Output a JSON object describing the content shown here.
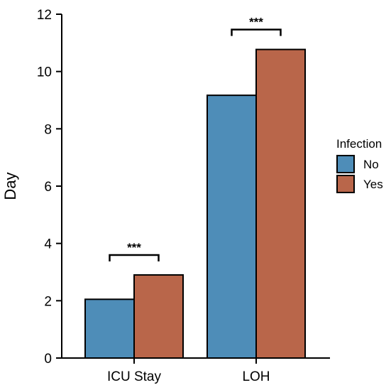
{
  "chart_data": {
    "type": "bar",
    "categories": [
      "ICU Stay",
      "LOH"
    ],
    "series": [
      {
        "name": "No",
        "values": [
          2.05,
          9.17
        ],
        "color": "#4e8db8"
      },
      {
        "name": "Yes",
        "values": [
          2.9,
          10.77
        ],
        "color": "#b9664a"
      }
    ],
    "xlabel": "",
    "ylabel": "Day",
    "ylim": [
      0,
      12
    ],
    "yticks": [
      0,
      2,
      4,
      6,
      8,
      10,
      12
    ],
    "legend": {
      "title": "Infection",
      "placement": "right"
    },
    "annotations": [
      {
        "category": "ICU Stay",
        "text": "***"
      },
      {
        "category": "LOH",
        "text": "***"
      }
    ],
    "grid": false
  }
}
